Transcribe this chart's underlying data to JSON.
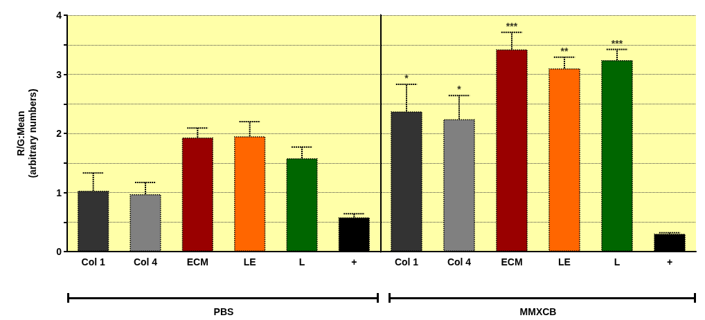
{
  "chart_data": [
    {
      "type": "bar",
      "ylabel": "R/G:Mean\n(arbitrary numbers)",
      "xlabel": "PBS",
      "categories": [
        "Col 1",
        "Col 4",
        "ECM",
        "LE",
        "L",
        "+"
      ],
      "values": [
        1.03,
        0.97,
        1.93,
        1.95,
        1.58,
        0.58
      ],
      "colors": [
        "#333333",
        "#808080",
        "#990000",
        "#ff6600",
        "#006600",
        "#000000"
      ],
      "errors": [
        [
          1.03,
          1.33
        ],
        [
          0.97,
          1.17
        ],
        [
          1.93,
          2.09
        ],
        [
          1.95,
          2.2
        ],
        [
          1.58,
          1.77
        ],
        [
          0.58,
          0.64
        ]
      ],
      "ylim": [
        0,
        4
      ],
      "yticks": [
        0,
        {
          "value": 0.5,
          "label": null
        },
        1,
        {
          "value": 1.5,
          "label": null
        },
        2,
        {
          "value": 2.5,
          "label": null
        },
        3,
        {
          "value": 3.5,
          "label": null
        },
        4
      ],
      "grid": true
    },
    {
      "type": "bar",
      "xlabel": "MMXCB",
      "categories": [
        "Col 1",
        "Col 4",
        "ECM",
        "LE",
        "L",
        "+"
      ],
      "values": [
        2.37,
        2.24,
        3.42,
        3.1,
        3.24,
        0.3
      ],
      "colors": [
        "#333333",
        "#808080",
        "#990000",
        "#ff6600",
        "#006600",
        "#000000"
      ],
      "errors": [
        [
          2.37,
          2.83
        ],
        [
          2.24,
          2.64
        ],
        [
          3.42,
          3.71
        ],
        [
          3.1,
          3.29
        ],
        [
          3.24,
          3.42
        ],
        [
          0.3,
          0.32
        ]
      ],
      "value_labels": [
        "*",
        "*",
        "***",
        "**",
        "***",
        null
      ],
      "ylim": [
        0,
        4
      ],
      "yticks": [
        0,
        {
          "value": 0.5,
          "label": null
        },
        1,
        {
          "value": 1.5,
          "label": null
        },
        2,
        {
          "value": 2.5,
          "label": null
        },
        3,
        {
          "value": 3.5,
          "label": null
        },
        4
      ],
      "tick_labels": "x",
      "grid": true
    }
  ]
}
